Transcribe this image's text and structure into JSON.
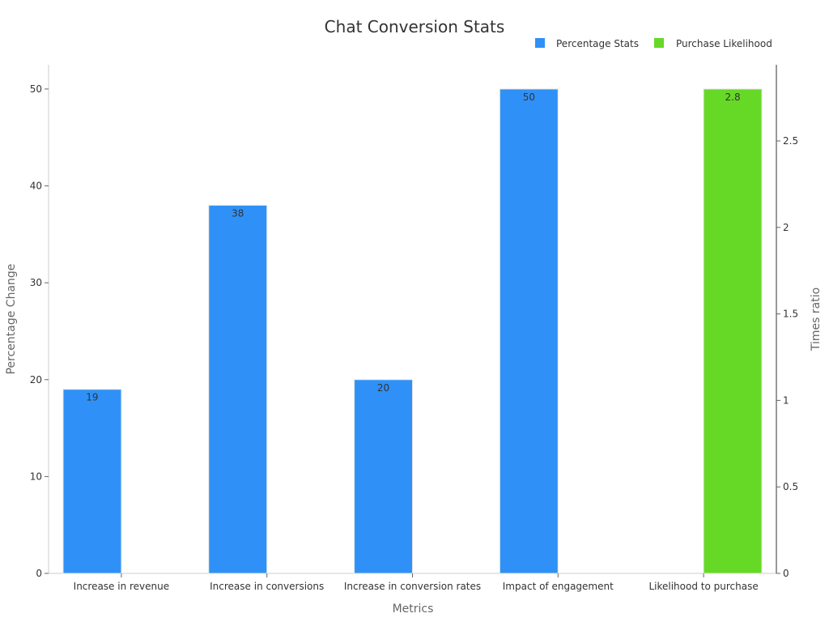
{
  "chart_data": {
    "type": "bar",
    "title": "Chat Conversion Stats",
    "xlabel": "Metrics",
    "ylabel": "Percentage Change",
    "y2label": "Times ratio",
    "categories": [
      "Increase in revenue",
      "Increase in conversions",
      "Increase in conversion rates",
      "Impact of engagement",
      "Likelihood to purchase"
    ],
    "ylim": [
      0,
      52.5
    ],
    "y2lim": [
      0,
      2.94
    ],
    "yticks": [
      0,
      10,
      20,
      30,
      40,
      50
    ],
    "y2ticks": [
      0,
      0.5,
      1,
      1.5,
      2,
      2.5
    ],
    "legend_position": "top-right",
    "series": [
      {
        "name": "Percentage Stats",
        "color": "#2f91f7",
        "axis": "left",
        "values": [
          19,
          38,
          20,
          50,
          null
        ]
      },
      {
        "name": "Purchase Likelihood",
        "color": "#66d926",
        "axis": "right",
        "values": [
          null,
          null,
          null,
          null,
          2.8
        ]
      }
    ]
  }
}
